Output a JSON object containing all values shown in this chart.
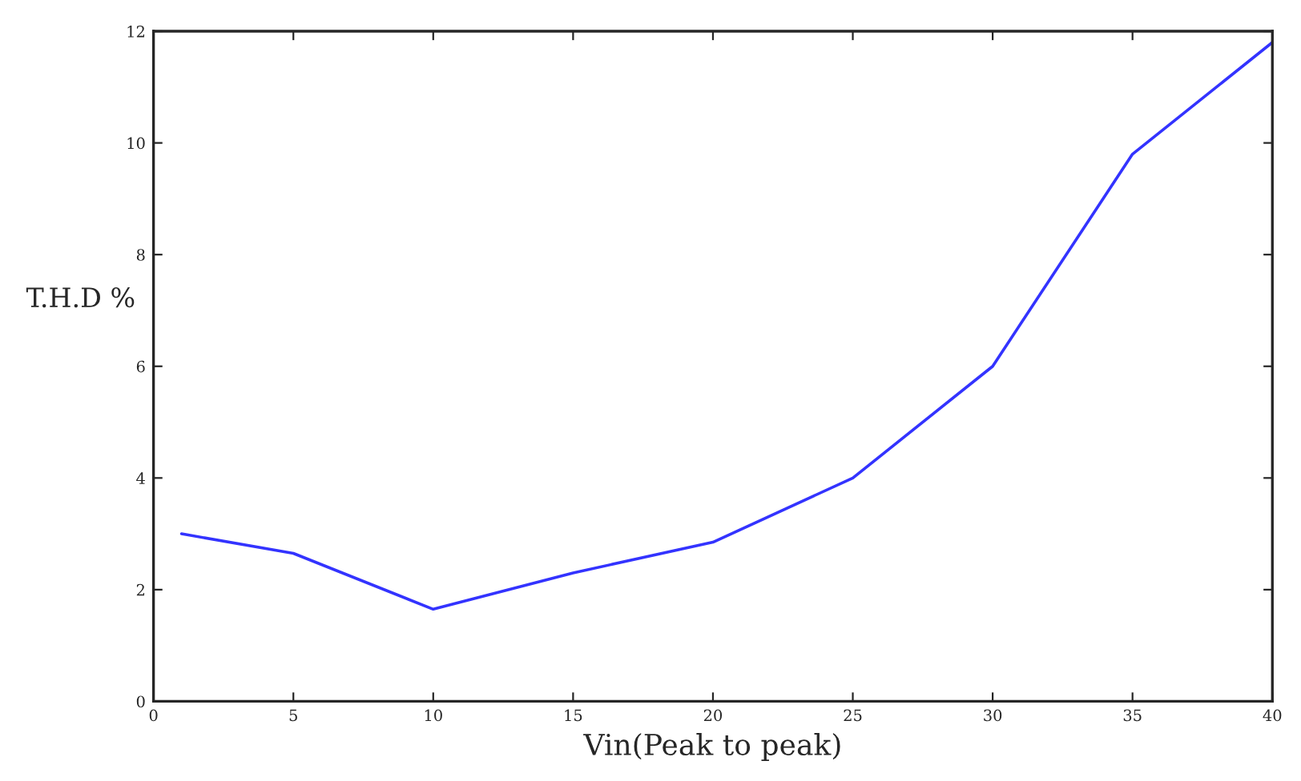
{
  "chart_data": {
    "type": "line",
    "xlabel": "Vin(Peak to peak)",
    "ylabel": "T.H.D %",
    "x": [
      1,
      5,
      10,
      15,
      20,
      25,
      30,
      35,
      40
    ],
    "series": [
      {
        "color": "#3333ff",
        "values": [
          3.0,
          2.65,
          1.65,
          2.3,
          2.85,
          4.0,
          6.0,
          9.8,
          11.8
        ]
      }
    ],
    "xlim": [
      0,
      40
    ],
    "xticks": [
      0,
      5,
      10,
      15,
      20,
      25,
      30,
      35,
      40
    ],
    "ylim": [
      0,
      12
    ],
    "yticks": [
      0,
      2,
      4,
      6,
      8,
      10,
      12
    ],
    "grid": false,
    "marker": "none",
    "line_style": "solid"
  }
}
